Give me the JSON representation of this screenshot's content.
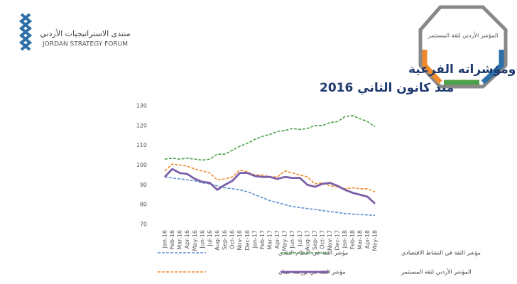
{
  "logo": {
    "name_ar": "منتدى الاستراتيجيات الأردني",
    "name_en": "JORDAN STRATEGY FORUM",
    "badge": "المؤشر الأردني لثقة المستثمر"
  },
  "chart_data": {
    "type": "line",
    "title": "المؤشر الأردني لثقة المستثمر ومؤشراته الفرعية",
    "subtitle": "منذ كانون الثاني 2016",
    "categories": [
      "Jan-16",
      "Feb-16",
      "Mar-16",
      "Apr-16",
      "May-16",
      "Jun-16",
      "Jul-16",
      "Aug-16",
      "Sep-16",
      "Oct-16",
      "Nov-16",
      "Dec-16",
      "Jan-17",
      "Feb-17",
      "Mar-17",
      "Apr-17",
      "May-17",
      "Jun-17",
      "Jul-17",
      "Aug-17",
      "Sep-17",
      "Oct-17",
      "Nov-17",
      "Dec-17",
      "Jan-18",
      "Feb-18",
      "Mar-18",
      "Apr-18",
      "May-18"
    ],
    "series": [
      {
        "name": "مؤشر الثقة في النظام النقدي",
        "color": "#5b8fd0",
        "dashed": true,
        "values": [
          94,
          93.5,
          93,
          92.5,
          92,
          91,
          90.5,
          89.5,
          88.5,
          88,
          87.5,
          86.5,
          85,
          83.5,
          82,
          81,
          80,
          79,
          78.5,
          78,
          77.5,
          77,
          76.5,
          76,
          75.5,
          75.2,
          75,
          74.8,
          74.5
        ]
      },
      {
        "name": "مؤشر الثقة في النشاط الاقتصادي",
        "color": "#4ea04a",
        "dashed": true,
        "values": [
          103,
          103.5,
          103,
          103.5,
          103,
          102.5,
          103,
          105.5,
          105.5,
          107.5,
          109.5,
          111,
          113,
          114.5,
          115.5,
          117,
          117.5,
          118.5,
          118,
          118.5,
          120,
          120,
          121.5,
          122,
          124.5,
          125,
          123.5,
          122,
          119.5
        ]
      },
      {
        "name": "مؤشر الثقة في بورصة عمان",
        "color": "#f08a2c",
        "dashed": true,
        "values": [
          97,
          100.5,
          100,
          99.5,
          98,
          97,
          96,
          92.5,
          93,
          94,
          97.5,
          96.5,
          95,
          95,
          94,
          94,
          97,
          96,
          95,
          94,
          90.5,
          91,
          89.5,
          89,
          88,
          88.5,
          88,
          88,
          86.5
        ]
      },
      {
        "name": "المؤشر الأردني لثقة المستثمر",
        "color": "#7b5ea7",
        "dashed": false,
        "values": [
          94,
          98,
          96,
          95.5,
          93,
          91.5,
          91,
          87.5,
          90,
          92,
          96,
          96,
          94.5,
          94,
          94,
          93,
          94,
          93.5,
          93.5,
          90,
          89,
          90.5,
          91,
          89.5,
          87.5,
          86,
          85,
          84,
          80.5
        ]
      }
    ],
    "ylim": [
      70,
      130
    ],
    "yticks": [
      70,
      80,
      90,
      100,
      110,
      120,
      130
    ],
    "grid": false,
    "legend": "bottom"
  }
}
